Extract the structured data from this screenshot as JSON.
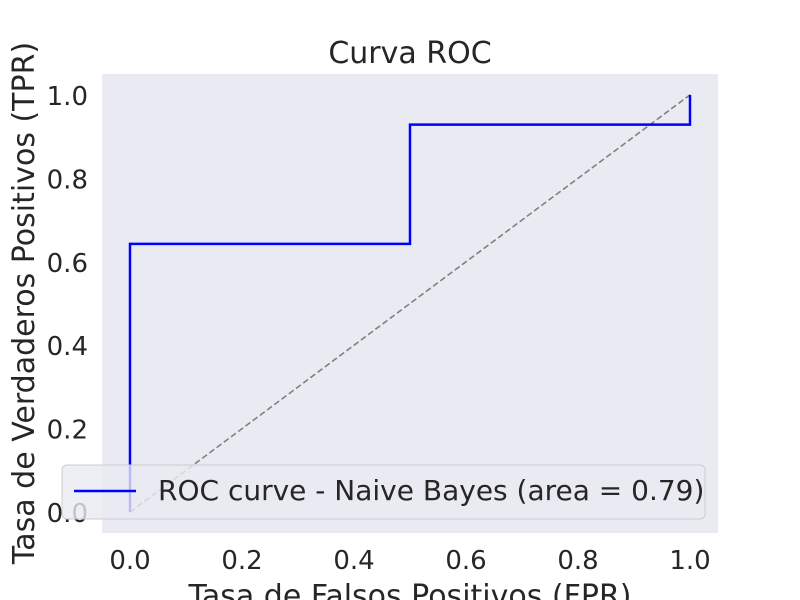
{
  "chart_data": {
    "type": "line",
    "title": "Curva ROC",
    "xlabel": "Tasa de Falsos Positivos (FPR)",
    "ylabel": "Tasa de Verdaderos Positivos (TPR)",
    "xlim": [
      -0.05,
      1.05
    ],
    "ylim": [
      -0.05,
      1.05
    ],
    "x_ticks": [
      "0.0",
      "0.2",
      "0.4",
      "0.6",
      "0.8",
      "1.0"
    ],
    "y_ticks": [
      "0.0",
      "0.2",
      "0.4",
      "0.6",
      "0.8",
      "1.0"
    ],
    "grid": false,
    "legend_position": "lower-right",
    "series": [
      {
        "name": "ROC curve - Naive Bayes (area = 0.79)",
        "color": "#0000ff",
        "style": "solid",
        "x": [
          0.0,
          0.0,
          0.0,
          0.5,
          0.5,
          1.0,
          1.0
        ],
        "y": [
          0.0,
          0.0714,
          0.6429,
          0.6429,
          0.9286,
          0.9286,
          1.0
        ]
      },
      {
        "color": "#808080",
        "style": "dashed",
        "x": [
          0.0,
          1.0
        ],
        "y": [
          0.0,
          1.0
        ]
      }
    ],
    "background_color": "#eaeaf2"
  }
}
